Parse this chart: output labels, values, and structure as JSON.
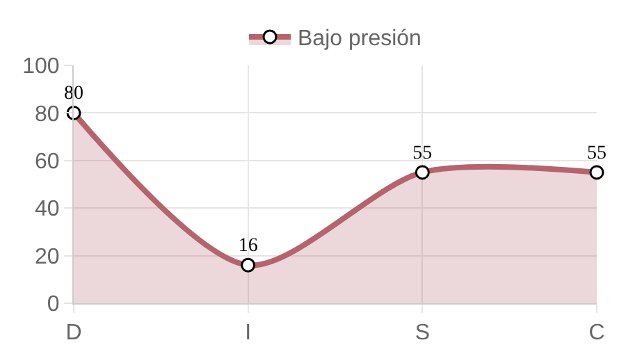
{
  "chart_data": {
    "type": "area",
    "categories": [
      "D",
      "I",
      "S",
      "C"
    ],
    "series": [
      {
        "name": "Bajo presión",
        "color": "#b5646e",
        "values": [
          80,
          16,
          55,
          55
        ]
      }
    ],
    "ylim": [
      0,
      100
    ],
    "yticks": [
      0,
      20,
      40,
      60,
      80,
      100
    ],
    "grid": true,
    "legend": "top",
    "marker": "circle",
    "data_labels": true
  }
}
